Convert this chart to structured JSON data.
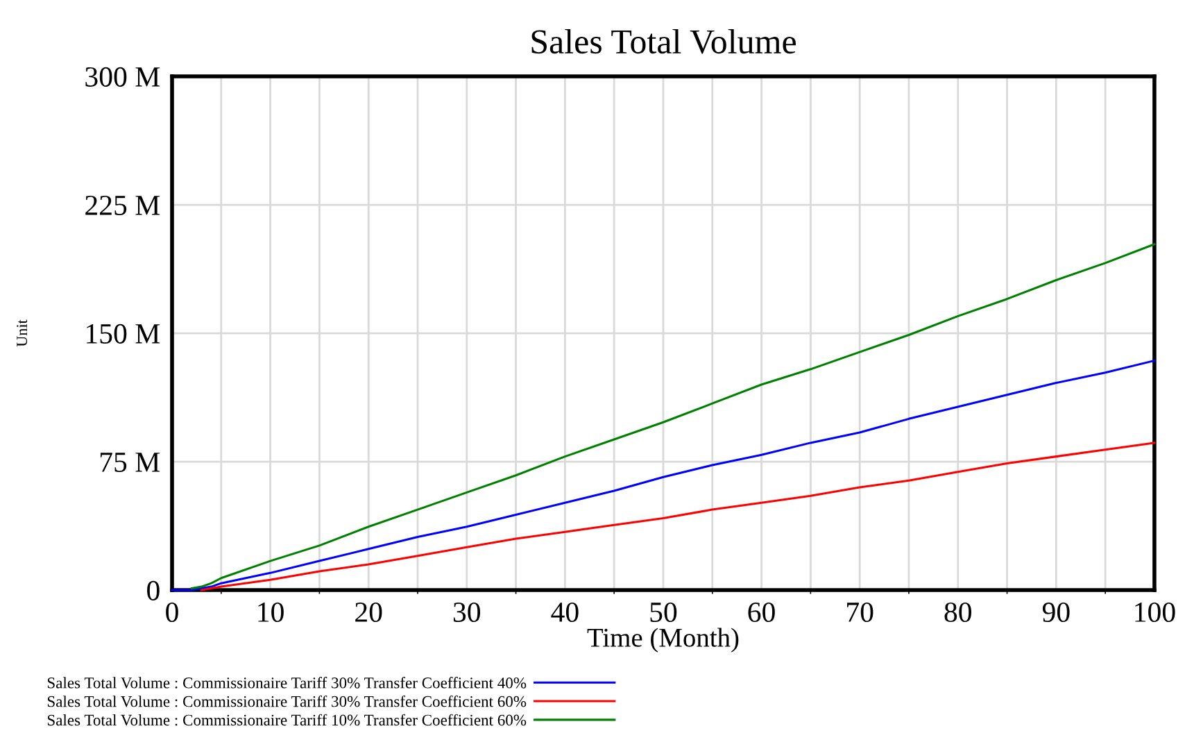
{
  "chart_data": {
    "type": "line",
    "title": "Sales Total Volume",
    "xlabel": "Time (Month)",
    "ylabel": "Unit",
    "x": [
      0,
      2,
      3,
      4,
      5,
      10,
      15,
      20,
      25,
      30,
      35,
      40,
      45,
      50,
      55,
      60,
      65,
      70,
      75,
      80,
      85,
      90,
      95,
      100
    ],
    "series": [
      {
        "name": "Sales Total Volume : Commissionaire Tariff 30% Transfer Coefficient 40%",
        "color": "#0000ff",
        "values": [
          0,
          0,
          1,
          2,
          4,
          10,
          17,
          24,
          31,
          37,
          44,
          51,
          58,
          66,
          73,
          79,
          86,
          92,
          100,
          107,
          114,
          121,
          127,
          134
        ]
      },
      {
        "name": "Sales Total Volume : Commissionaire Tariff 30% Transfer Coefficient 60%",
        "color": "#ff0000",
        "values": [
          null,
          null,
          0,
          1,
          2,
          6,
          11,
          15,
          20,
          25,
          30,
          34,
          38,
          42,
          47,
          51,
          55,
          60,
          64,
          69,
          74,
          78,
          82,
          86
        ]
      },
      {
        "name": "Sales Total Volume : Commissionaire Tariff 10% Transfer Coefficient 60%",
        "color": "#008000",
        "values": [
          null,
          1,
          2,
          4,
          7,
          17,
          26,
          37,
          47,
          57,
          67,
          78,
          88,
          98,
          109,
          120,
          129,
          139,
          149,
          160,
          170,
          181,
          191,
          202
        ]
      }
    ],
    "xlim": [
      0,
      100
    ],
    "xticks": [
      0,
      10,
      20,
      30,
      40,
      50,
      60,
      70,
      80,
      90,
      100
    ],
    "ylim": [
      0,
      300
    ],
    "yticks": [
      {
        "value": 0,
        "label": "0"
      },
      {
        "value": 75,
        "label": "75 M"
      },
      {
        "value": 150,
        "label": "150 M"
      },
      {
        "value": 225,
        "label": "225 M"
      },
      {
        "value": 300,
        "label": "300 M"
      }
    ],
    "grid": true,
    "legend": "bottom",
    "marker": "none",
    "line_style": "solid"
  }
}
